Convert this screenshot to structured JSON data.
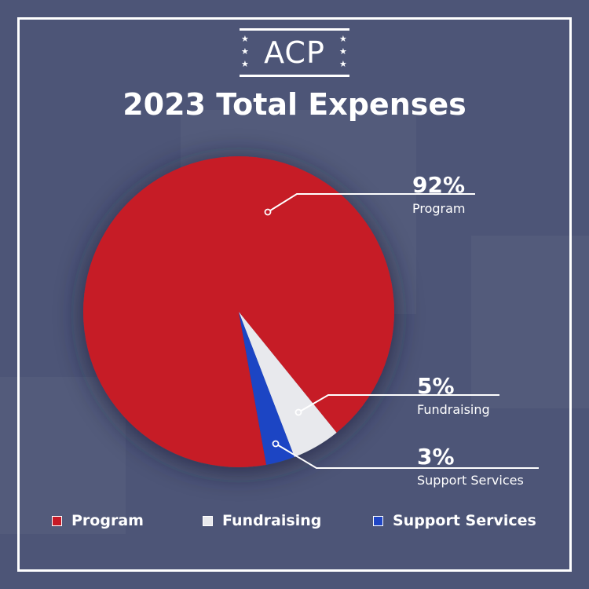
{
  "logo": {
    "text": "ACP"
  },
  "chart_data": {
    "type": "pie",
    "title": "2023 Total Expenses",
    "categories": [
      "Program",
      "Fundraising",
      "Support Services"
    ],
    "values": [
      92,
      5,
      3
    ],
    "value_labels": [
      "92%",
      "5%",
      "3%"
    ],
    "colors": [
      "#c61a27",
      "#e8e9ed",
      "#1f45c4"
    ],
    "legend_placement": "bottom"
  },
  "legend": {
    "items": [
      {
        "label": "Program",
        "color": "#c61a27"
      },
      {
        "label": "Fundraising",
        "color": "#e8e9ed"
      },
      {
        "label": "Support Services",
        "color": "#1f45c4"
      }
    ]
  }
}
